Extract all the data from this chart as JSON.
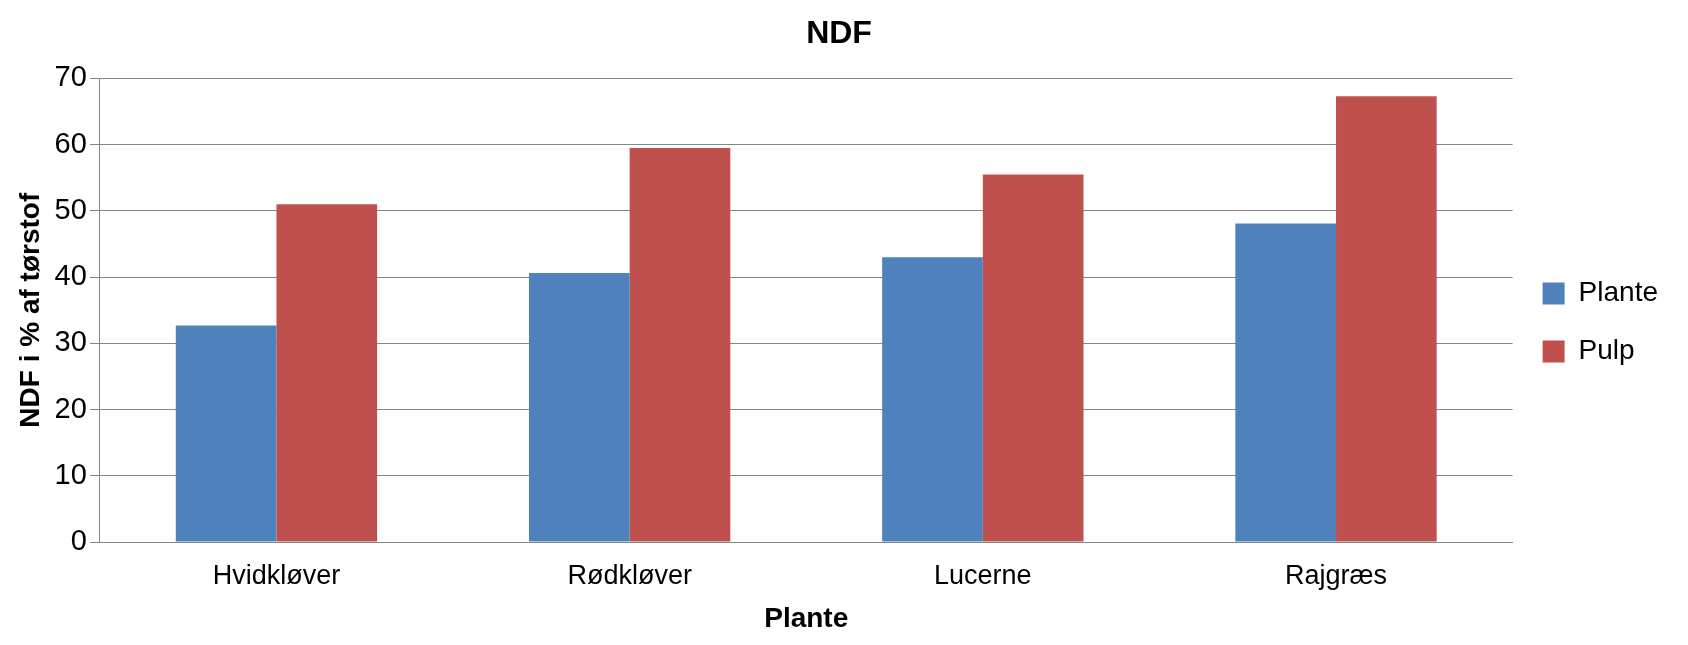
{
  "chart_data": {
    "type": "bar",
    "title": "NDF",
    "xlabel": "Plante",
    "ylabel": "NDF i % af tørstof",
    "categories": [
      "Hvidkløver",
      "Rødkløver",
      "Lucerne",
      "Rajgræs"
    ],
    "series": [
      {
        "name": "Plante",
        "color": "#4f81bd",
        "values": [
          32.7,
          40.6,
          43.0,
          48.1
        ]
      },
      {
        "name": "Pulp",
        "color": "#c0504d",
        "values": [
          51.0,
          59.5,
          55.5,
          67.3
        ]
      }
    ],
    "ylim": [
      0,
      70
    ],
    "yticks": [
      0,
      10,
      20,
      30,
      40,
      50,
      60,
      70
    ],
    "grid": "y",
    "legend": "right"
  }
}
